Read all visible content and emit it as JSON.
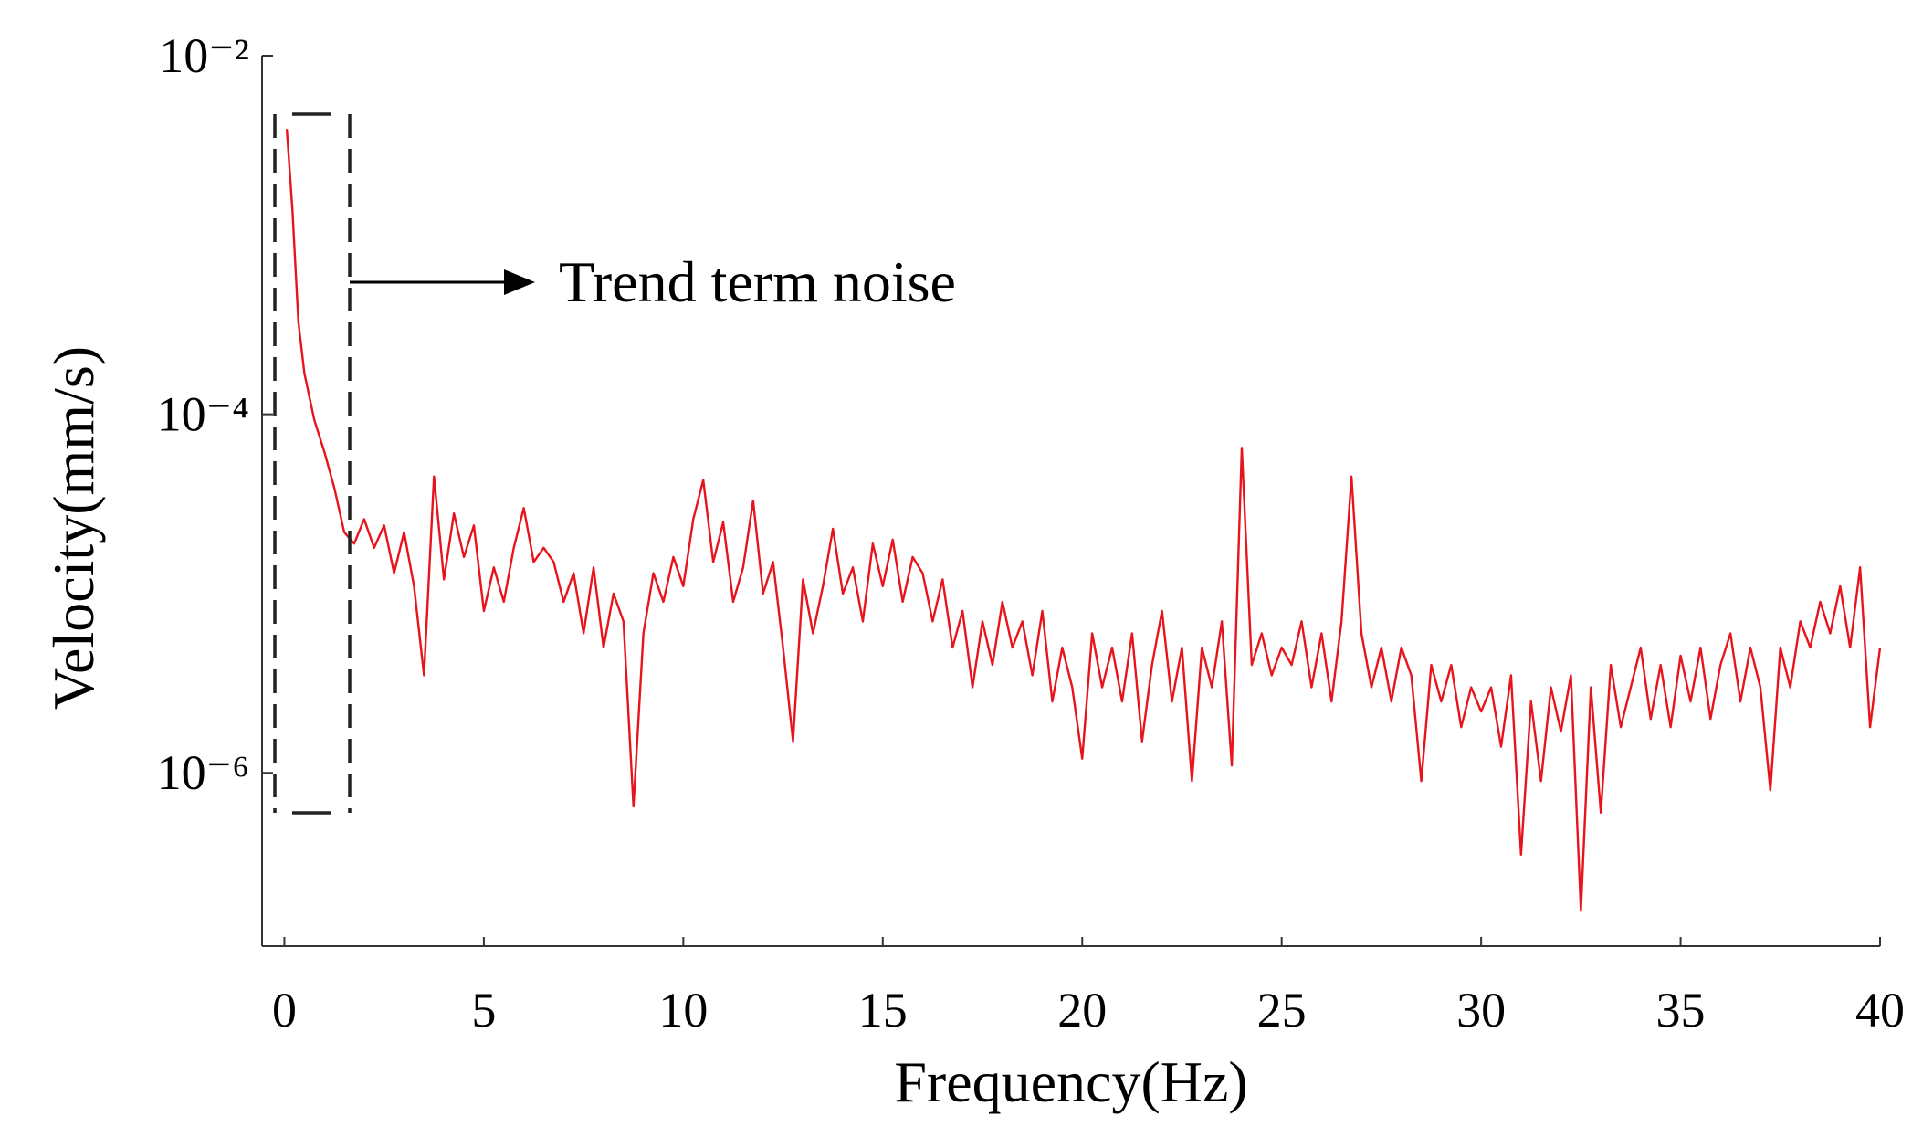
{
  "chart_data": {
    "type": "line",
    "x_label": "Frequency(Hz)",
    "y_label": "Velocity(mm/s)",
    "annotation": "Trend term noise",
    "log_y": true,
    "grid": false,
    "xlim": [
      -0.56,
      40
    ],
    "ylim": [
      1.08e-07,
      0.01
    ],
    "xticks": [
      0,
      5,
      10,
      15,
      20,
      25,
      30,
      35,
      40
    ],
    "yticks": [
      {
        "value": 1e-06,
        "label": "10⁻⁶"
      },
      {
        "value": 0.0001,
        "label": "10⁻⁴"
      },
      {
        "value": 0.01,
        "label": "10⁻²"
      }
    ],
    "x": [
      0.06,
      0.2,
      0.35,
      0.5,
      0.75,
      1.0,
      1.25,
      1.5,
      1.75,
      2.0,
      2.25,
      2.5,
      2.75,
      3.0,
      3.25,
      3.5,
      3.75,
      4.0,
      4.25,
      4.5,
      4.75,
      5.0,
      5.25,
      5.5,
      5.75,
      6.0,
      6.25,
      6.5,
      6.75,
      7.0,
      7.25,
      7.5,
      7.75,
      8.0,
      8.25,
      8.5,
      8.75,
      9.0,
      9.25,
      9.5,
      9.75,
      10.0,
      10.25,
      10.5,
      10.75,
      11.0,
      11.25,
      11.5,
      11.75,
      12.0,
      12.25,
      12.5,
      12.75,
      13.0,
      13.25,
      13.5,
      13.75,
      14.0,
      14.25,
      14.5,
      14.75,
      15.0,
      15.25,
      15.5,
      15.75,
      16.0,
      16.25,
      16.5,
      16.75,
      17.0,
      17.25,
      17.5,
      17.75,
      18.0,
      18.25,
      18.5,
      18.75,
      19.0,
      19.25,
      19.5,
      19.75,
      20.0,
      20.25,
      20.5,
      20.75,
      21.0,
      21.25,
      21.5,
      21.75,
      22.0,
      22.25,
      22.5,
      22.75,
      23.0,
      23.25,
      23.5,
      23.75,
      24.0,
      24.25,
      24.5,
      24.75,
      25.0,
      25.25,
      25.5,
      25.75,
      26.0,
      26.25,
      26.5,
      26.75,
      27.0,
      27.25,
      27.5,
      27.75,
      28.0,
      28.25,
      28.5,
      28.75,
      29.0,
      29.25,
      29.5,
      29.75,
      30.0,
      30.25,
      30.5,
      30.75,
      31.0,
      31.25,
      31.5,
      31.75,
      32.0,
      32.25,
      32.5,
      32.75,
      33.0,
      33.25,
      33.5,
      33.75,
      34.0,
      34.25,
      34.5,
      34.75,
      35.0,
      35.25,
      35.5,
      35.75,
      36.0,
      36.25,
      36.5,
      36.75,
      37.0,
      37.25,
      37.5,
      37.75,
      38.0,
      38.25,
      38.5,
      38.75,
      39.0,
      39.25,
      39.5,
      39.75,
      40.0
    ],
    "series": [
      {
        "name": "Velocity",
        "color": "#e8141c",
        "values": [
          0.0039,
          0.0014,
          0.00033,
          0.00017,
          9.3e-05,
          6.2e-05,
          3.9e-05,
          2.2e-05,
          1.9e-05,
          2.6e-05,
          1.8e-05,
          2.4e-05,
          1.3e-05,
          2.2e-05,
          1.1e-05,
          3.5e-06,
          4.5e-05,
          1.2e-05,
          2.8e-05,
          1.6e-05,
          2.4e-05,
          8e-06,
          1.4e-05,
          9e-06,
          1.8e-05,
          3e-05,
          1.5e-05,
          1.8e-05,
          1.5e-05,
          9e-06,
          1.3e-05,
          6e-06,
          1.4e-05,
          5e-06,
          1e-05,
          7e-06,
          6.5e-07,
          6e-06,
          1.3e-05,
          9e-06,
          1.6e-05,
          1.1e-05,
          2.6e-05,
          4.3e-05,
          1.5e-05,
          2.5e-05,
          9e-06,
          1.4e-05,
          3.3e-05,
          1e-05,
          1.5e-05,
          5e-06,
          1.5e-06,
          1.2e-05,
          6e-06,
          1.1e-05,
          2.3e-05,
          1e-05,
          1.4e-05,
          7e-06,
          1.9e-05,
          1.1e-05,
          2e-05,
          9e-06,
          1.6e-05,
          1.3e-05,
          7e-06,
          1.2e-05,
          5e-06,
          8e-06,
          3e-06,
          7e-06,
          4e-06,
          9e-06,
          5e-06,
          7e-06,
          3.5e-06,
          8e-06,
          2.5e-06,
          5e-06,
          3e-06,
          1.2e-06,
          6e-06,
          3e-06,
          5e-06,
          2.5e-06,
          6e-06,
          1.5e-06,
          4e-06,
          8e-06,
          2.5e-06,
          5e-06,
          9e-07,
          5e-06,
          3e-06,
          7e-06,
          1.1e-06,
          6.5e-05,
          4e-06,
          6e-06,
          3.5e-06,
          5e-06,
          4e-06,
          7e-06,
          3e-06,
          6e-06,
          2.5e-06,
          7e-06,
          4.5e-05,
          6e-06,
          3e-06,
          5e-06,
          2.5e-06,
          5e-06,
          3.5e-06,
          9e-07,
          4e-06,
          2.5e-06,
          4e-06,
          1.8e-06,
          3e-06,
          2.2e-06,
          3e-06,
          1.4e-06,
          3.5e-06,
          3.5e-07,
          2.5e-06,
          9e-07,
          3e-06,
          1.7e-06,
          3.5e-06,
          1.7e-07,
          3e-06,
          6e-07,
          4e-06,
          1.8e-06,
          3e-06,
          5e-06,
          2e-06,
          4e-06,
          1.8e-06,
          4.5e-06,
          2.5e-06,
          5e-06,
          2e-06,
          4e-06,
          6e-06,
          2.5e-06,
          5e-06,
          3e-06,
          8e-07,
          5e-06,
          3e-06,
          7e-06,
          5e-06,
          9e-06,
          6e-06,
          1.1e-05,
          5e-06,
          1.4e-05,
          1.8e-06,
          5e-06
        ]
      }
    ]
  }
}
